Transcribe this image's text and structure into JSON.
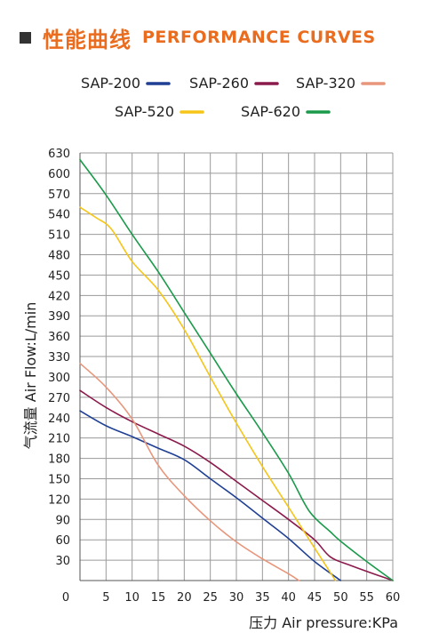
{
  "header": {
    "title_cn": "性能曲线",
    "title_en": "PERFORMANCE CURVES"
  },
  "colors": {
    "accent": "#ea6c1f",
    "grid": "#9a9a9a",
    "text": "#222222"
  },
  "chart_data": {
    "type": "line",
    "title": "",
    "xlabel": "压力 Air pressure:KPa",
    "ylabel": "气流量 Air Flow:L/min",
    "xlim": [
      0,
      60
    ],
    "ylim": [
      0,
      630
    ],
    "x_ticks": [
      0,
      5,
      10,
      15,
      20,
      25,
      30,
      35,
      40,
      45,
      50,
      55,
      60
    ],
    "y_ticks": [
      30,
      60,
      90,
      120,
      150,
      180,
      210,
      240,
      270,
      300,
      330,
      360,
      390,
      420,
      450,
      480,
      510,
      540,
      570,
      600,
      630
    ],
    "grid": true,
    "legend_position": "top",
    "series": [
      {
        "name": "SAP-200",
        "color": "#1f3f94",
        "points": [
          [
            0,
            250
          ],
          [
            5,
            228
          ],
          [
            10,
            212
          ],
          [
            15,
            195
          ],
          [
            20,
            178
          ],
          [
            25,
            150
          ],
          [
            30,
            122
          ],
          [
            35,
            92
          ],
          [
            40,
            62
          ],
          [
            45,
            28
          ],
          [
            50,
            0
          ]
        ]
      },
      {
        "name": "SAP-260",
        "color": "#8b1a4c",
        "points": [
          [
            0,
            280
          ],
          [
            5,
            255
          ],
          [
            10,
            234
          ],
          [
            15,
            216
          ],
          [
            20,
            198
          ],
          [
            25,
            174
          ],
          [
            30,
            146
          ],
          [
            35,
            118
          ],
          [
            40,
            90
          ],
          [
            45,
            60
          ],
          [
            48,
            35
          ],
          [
            52,
            22
          ],
          [
            60,
            0
          ]
        ]
      },
      {
        "name": "SAP-320",
        "color": "#e8967b",
        "points": [
          [
            0,
            320
          ],
          [
            5,
            285
          ],
          [
            10,
            238
          ],
          [
            15,
            170
          ],
          [
            20,
            125
          ],
          [
            25,
            88
          ],
          [
            30,
            57
          ],
          [
            35,
            32
          ],
          [
            40,
            10
          ],
          [
            42,
            0
          ]
        ]
      },
      {
        "name": "SAP-520",
        "color": "#f5c518",
        "points": [
          [
            0,
            550
          ],
          [
            3,
            535
          ],
          [
            6,
            518
          ],
          [
            10,
            470
          ],
          [
            15,
            428
          ],
          [
            20,
            370
          ],
          [
            25,
            300
          ],
          [
            30,
            232
          ],
          [
            35,
            168
          ],
          [
            40,
            108
          ],
          [
            45,
            48
          ],
          [
            49,
            0
          ]
        ]
      },
      {
        "name": "SAP-620",
        "color": "#1a9a4a",
        "points": [
          [
            0,
            620
          ],
          [
            5,
            568
          ],
          [
            10,
            510
          ],
          [
            15,
            455
          ],
          [
            20,
            395
          ],
          [
            25,
            335
          ],
          [
            30,
            275
          ],
          [
            35,
            218
          ],
          [
            40,
            158
          ],
          [
            44,
            102
          ],
          [
            48,
            72
          ],
          [
            50,
            58
          ],
          [
            55,
            28
          ],
          [
            60,
            0
          ]
        ]
      }
    ]
  }
}
